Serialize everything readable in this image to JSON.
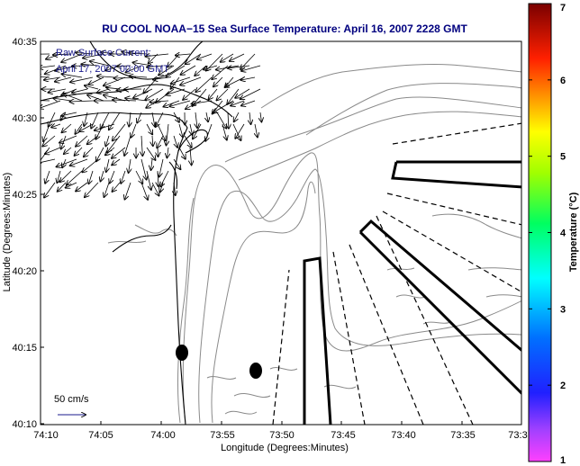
{
  "chart_data": {
    "type": "map",
    "title": "RU COOL  NOAA−15  Sea Surface Temperature:  April 16, 2007 2228 GMT",
    "xlabel": "Longitude (Degrees:Minutes)",
    "ylabel": "Latitude (Degrees:Minutes)",
    "x_ticks": [
      "74:10",
      "74:05",
      "74:00",
      "73:55",
      "73:50",
      "73:45",
      "73:40",
      "73:35",
      "73:3"
    ],
    "y_ticks": [
      "40:35",
      "40:30",
      "40:25",
      "40:20",
      "40:15",
      "40:10"
    ],
    "xlim_deg": [
      -74.1667,
      -73.5
    ],
    "ylim_deg": [
      40.1667,
      40.5833
    ],
    "annotations": {
      "current_line1": "Raw Surface Current:",
      "current_line2": "April 17, 2007 00:00 GMT",
      "scale_label": "50 cm/s"
    },
    "colorbar": {
      "label": "Temperature (°C)",
      "range": [
        1,
        7
      ],
      "ticks": [
        "1",
        "2",
        "3",
        "4",
        "5",
        "6",
        "7"
      ]
    },
    "markers_deg": [
      {
        "lon": -73.9833,
        "lat": 40.2458
      },
      {
        "lon": -73.9375,
        "lat": 40.225
      }
    ],
    "grid": false,
    "legend": "none"
  },
  "colors": {
    "title": "#00007f",
    "annotation": "#1a1a8c",
    "outline": "#000000",
    "contour": "#888888",
    "colorbar_stops": [
      "#ff00ff",
      "#0000ff",
      "#00ffff",
      "#00ff00",
      "#ffff00",
      "#ff8000",
      "#ff0000",
      "#800000"
    ]
  }
}
